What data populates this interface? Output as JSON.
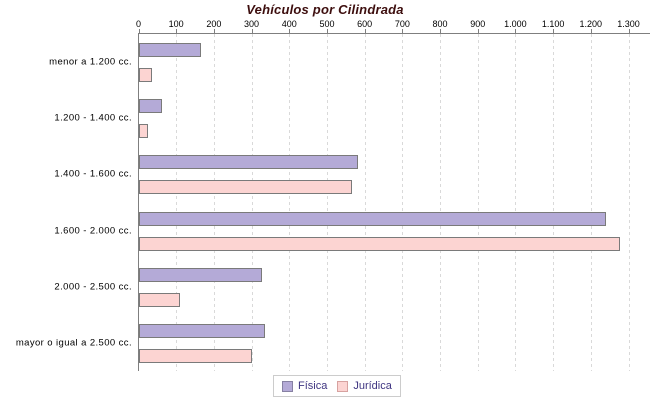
{
  "chart_data": {
    "type": "bar",
    "orientation": "horizontal",
    "title": "Vehículos por Cilindrada",
    "categories": [
      "menor a 1.200 cc.",
      "1.200 - 1.400 cc.",
      "1.400 - 1.600 cc.",
      "1.600 - 2.000 cc.",
      "2.000 - 2.500 cc.",
      "mayor o igual a 2.500 cc."
    ],
    "series": [
      {
        "key": "fisica",
        "name": "Física",
        "color": "#b4aad7",
        "border": "#7a7a7a",
        "swatch_border": "#8781a3",
        "values": [
          165,
          60,
          580,
          1240,
          325,
          335
        ]
      },
      {
        "key": "juridica",
        "name": "Jurídica",
        "color": "#fcd4d2",
        "border": "#7a7a7a",
        "swatch_border": "#d7a2a0",
        "values": [
          35,
          25,
          565,
          1275,
          110,
          300
        ]
      }
    ],
    "xlim": [
      0,
      1300
    ],
    "x_tick_step": 100,
    "x_tick_labels": [
      "0",
      "100",
      "200",
      "300",
      "400",
      "500",
      "600",
      "700",
      "800",
      "900",
      "1.000",
      "1.100",
      "1.200",
      "1.300"
    ],
    "grid": "vertical-dashed",
    "legend_position": "bottom-center"
  },
  "colors": {
    "title_text": "#3d0e0e",
    "legend_text": "#3f3582",
    "axis": "#7f7f7f",
    "grid": "#d9d9d9",
    "category_label": "#000000",
    "tick_label": "#000000"
  }
}
